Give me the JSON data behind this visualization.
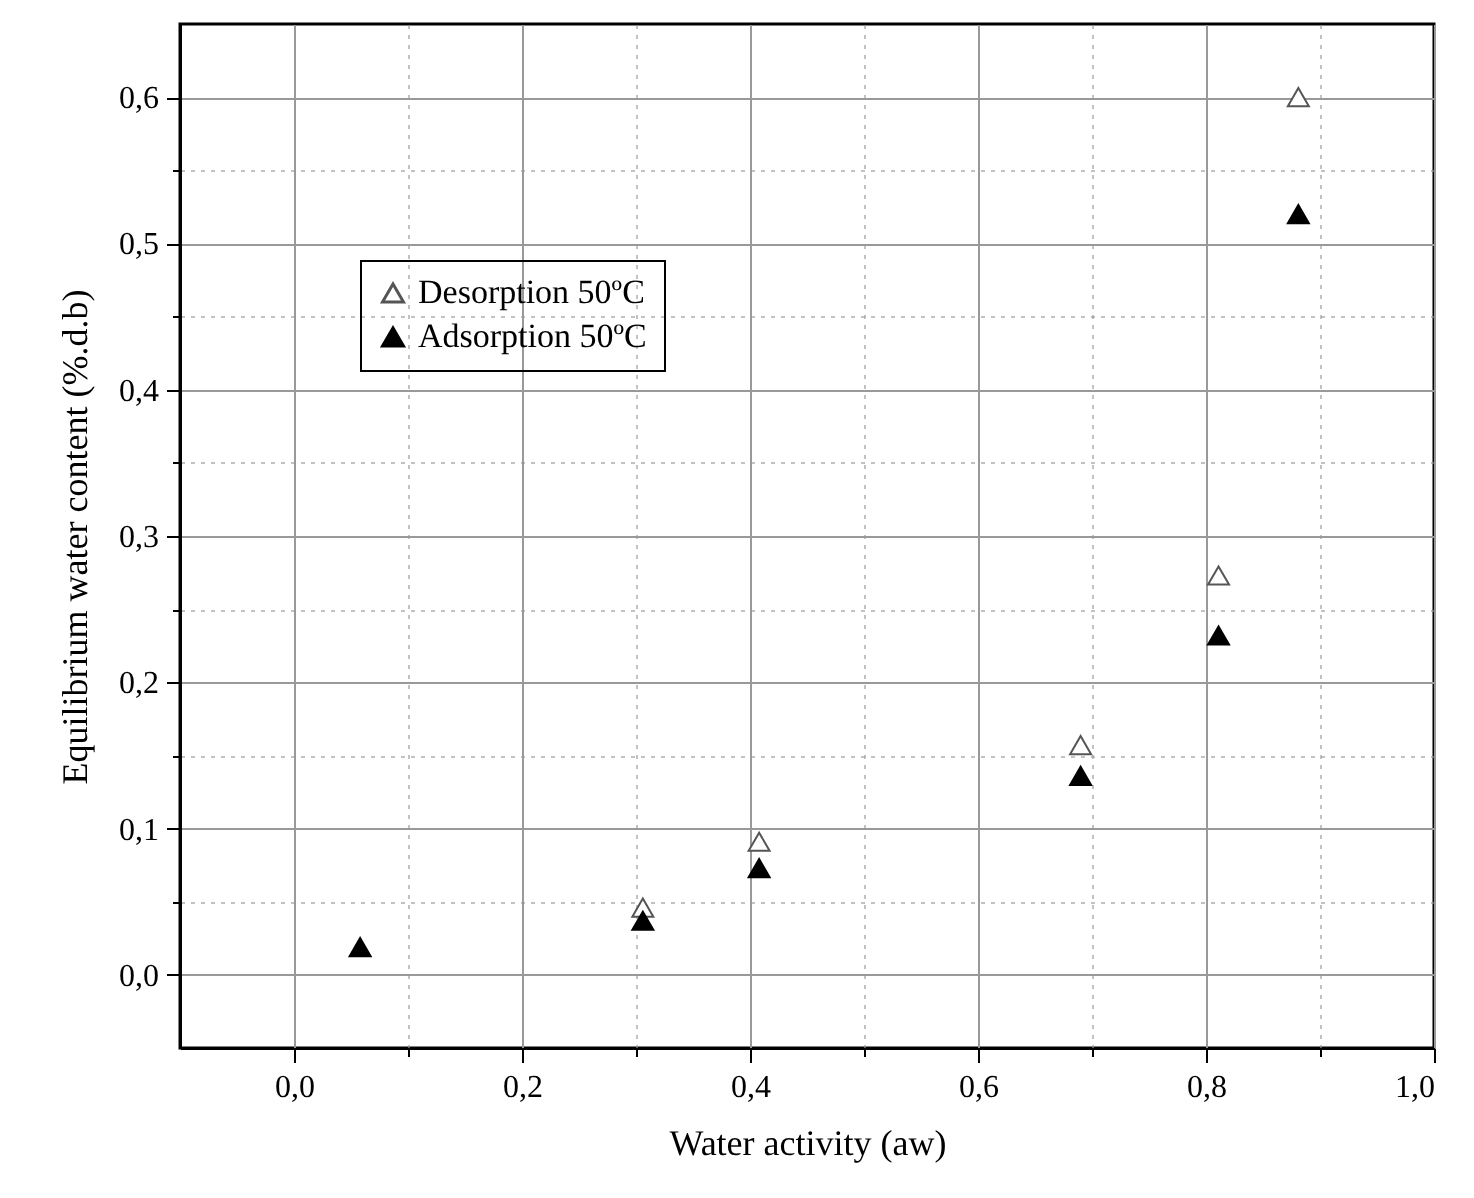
{
  "chart_data": {
    "type": "scatter",
    "xlabel": "Water activity (aw)",
    "ylabel": "Equilibrium water content (%.d.b)",
    "series": [
      {
        "name": "Desorption 50ºC",
        "color": "#555555",
        "x": [
          0.306,
          0.408,
          0.69,
          0.811,
          0.881
        ],
        "values": [
          0.046,
          0.091,
          0.157,
          0.273,
          0.6
        ]
      },
      {
        "name": "Adsorption 50ºC",
        "color": "#000000",
        "x": [
          0.058,
          0.306,
          0.408,
          0.69,
          0.811,
          0.881
        ],
        "values": [
          0.019,
          0.037,
          0.073,
          0.136,
          0.232,
          0.52
        ]
      }
    ],
    "xlim": [
      -0.1,
      1.0
    ],
    "xticks": [
      {
        "value": 0,
        "label": "0,0"
      },
      {
        "value": 0.1,
        "label": null
      },
      {
        "value": 0.2,
        "label": "0,2"
      },
      {
        "value": 0.3,
        "label": null
      },
      {
        "value": 0.4,
        "label": "0,4"
      },
      {
        "value": 0.5,
        "label": null
      },
      {
        "value": 0.6,
        "label": "0,6"
      },
      {
        "value": 0.7,
        "label": null
      },
      {
        "value": 0.8,
        "label": "0,8"
      },
      {
        "value": 0.9,
        "label": null
      },
      {
        "value": 1.0,
        "label": "1,0"
      }
    ],
    "ylim": [
      -0.05,
      0.65
    ],
    "yticks": [
      {
        "value": 0,
        "label": "0,0"
      },
      {
        "value": 0.05,
        "label": null
      },
      {
        "value": 0.1,
        "label": "0,1"
      },
      {
        "value": 0.15,
        "label": null
      },
      {
        "value": 0.2,
        "label": "0,2"
      },
      {
        "value": 0.25,
        "label": null
      },
      {
        "value": 0.3,
        "label": "0,3"
      },
      {
        "value": 0.35,
        "label": null
      },
      {
        "value": 0.4,
        "label": "0,4"
      },
      {
        "value": 0.45,
        "label": null
      },
      {
        "value": 0.5,
        "label": "0,5"
      },
      {
        "value": 0.55,
        "label": null
      },
      {
        "value": 0.6,
        "label": "0,6"
      }
    ],
    "grid": true,
    "legend": "top left",
    "marker": "triangle"
  }
}
